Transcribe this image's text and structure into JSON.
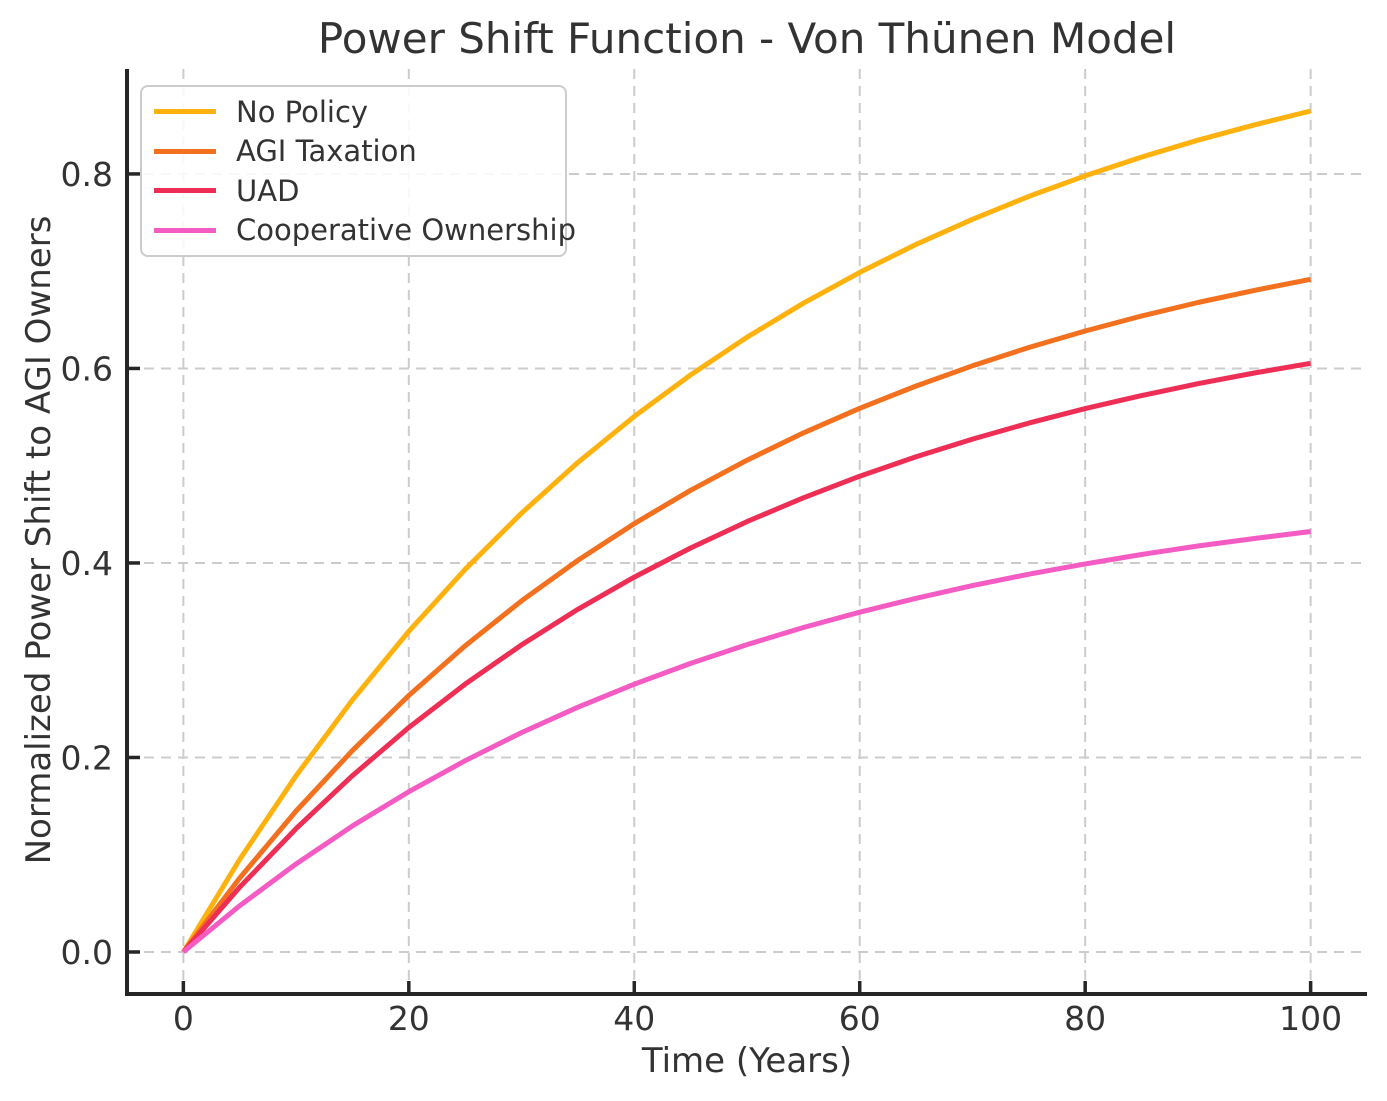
{
  "chart_data": {
    "type": "line",
    "title": "Power Shift Function - Von Thünen Model",
    "xlabel": "Time (Years)",
    "ylabel": "Normalized Power Shift to AGI Owners",
    "xlim": [
      -5,
      105
    ],
    "ylim": [
      -0.0432,
      0.9079
    ],
    "x_ticks": [
      0,
      20,
      40,
      60,
      80,
      100
    ],
    "x_ticklabels": [
      "0",
      "20",
      "40",
      "60",
      "80",
      "100"
    ],
    "y_ticks": [
      0.0,
      0.2,
      0.4,
      0.6,
      0.8
    ],
    "y_ticklabels": [
      "0.0",
      "0.2",
      "0.4",
      "0.6",
      "0.8"
    ],
    "grid": "dashed",
    "legend_position": "upper left",
    "x": [
      0,
      5,
      10,
      15,
      20,
      25,
      30,
      35,
      40,
      45,
      50,
      55,
      60,
      65,
      70,
      75,
      80,
      85,
      90,
      95,
      100
    ],
    "series": [
      {
        "name": "No Policy",
        "color": "#FFB10E",
        "values": [
          0,
          0.0952,
          0.1813,
          0.2592,
          0.3297,
          0.3935,
          0.4512,
          0.5034,
          0.5507,
          0.5934,
          0.6321,
          0.6671,
          0.6988,
          0.7275,
          0.7534,
          0.7769,
          0.7981,
          0.8173,
          0.8347,
          0.8504,
          0.8647
        ]
      },
      {
        "name": "AGI Taxation",
        "color": "#F3701E",
        "values": [
          0,
          0.0761,
          0.145,
          0.2073,
          0.2637,
          0.3148,
          0.361,
          0.4027,
          0.4405,
          0.4747,
          0.5057,
          0.5337,
          0.559,
          0.582,
          0.6027,
          0.6215,
          0.6385,
          0.6539,
          0.6678,
          0.6803,
          0.6917
        ]
      },
      {
        "name": "UAD",
        "color": "#EE2E55",
        "values": [
          0,
          0.0666,
          0.1269,
          0.1814,
          0.2308,
          0.2754,
          0.3158,
          0.3524,
          0.3855,
          0.4154,
          0.4425,
          0.467,
          0.4892,
          0.5092,
          0.5274,
          0.5438,
          0.5587,
          0.5721,
          0.5843,
          0.5953,
          0.6053
        ]
      },
      {
        "name": "Cooperative Ownership",
        "color": "#F45CC4",
        "values": [
          0,
          0.0476,
          0.0906,
          0.1296,
          0.1648,
          0.1967,
          0.2256,
          0.2517,
          0.2753,
          0.2967,
          0.3161,
          0.3336,
          0.3494,
          0.3637,
          0.3767,
          0.3884,
          0.399,
          0.4087,
          0.4174,
          0.4252,
          0.4323
        ]
      }
    ]
  },
  "colors": {
    "text": "#333333",
    "spine": "#262626",
    "grid": "#cccccc",
    "legend_border": "#cccccc",
    "background": "#ffffff"
  }
}
